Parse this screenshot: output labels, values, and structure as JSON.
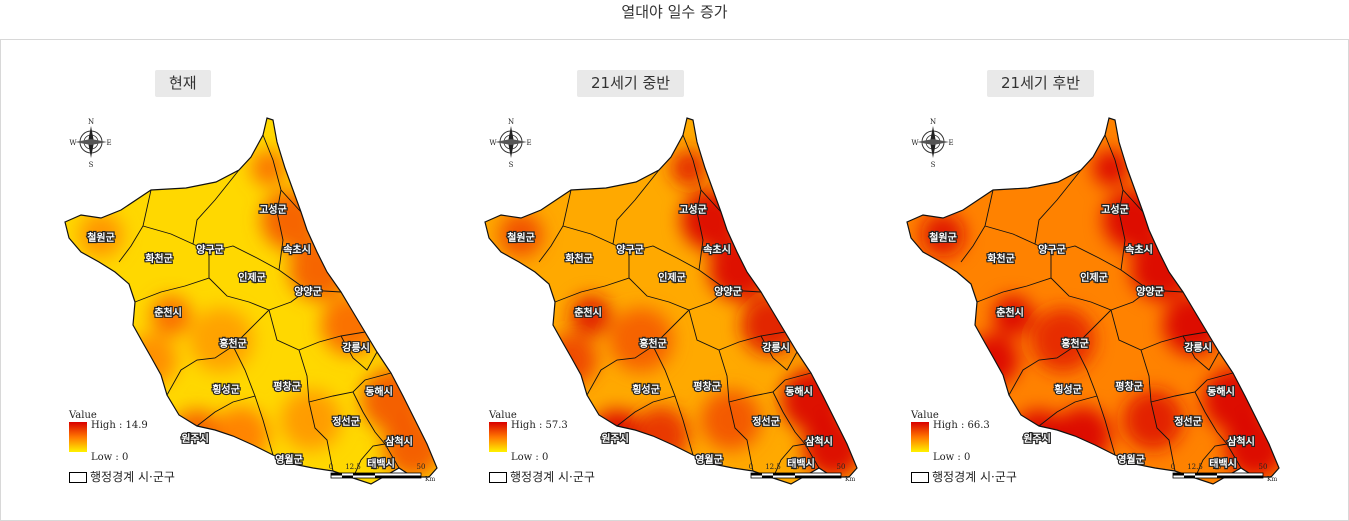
{
  "page_title": "열대야 일수 증가",
  "panels": [
    {
      "label": "현재",
      "legend_high": "High : 14.9",
      "legend_low": "Low : 0",
      "heat_level": 0.2
    },
    {
      "label": "21세기 중반",
      "legend_high": "High : 57.3",
      "legend_low": "Low : 0",
      "heat_level": 0.55
    },
    {
      "label": "21세기 후반",
      "legend_high": "High : 66.3",
      "legend_low": "Low : 0",
      "heat_level": 0.85
    }
  ],
  "legend": {
    "title": "Value",
    "boundary_label": "행정경계 시·군구"
  },
  "compass": {
    "n": "N",
    "s": "S",
    "e": "E",
    "w": "W"
  },
  "scale": {
    "ticks": [
      "0",
      "12.5",
      "25",
      "50"
    ],
    "unit": "Km"
  },
  "regions": [
    "철원군",
    "화천군",
    "양구군",
    "고성군",
    "속초시",
    "인제군",
    "양양군",
    "춘천시",
    "홍천군",
    "강릉시",
    "횡성군",
    "평창군",
    "동해시",
    "원주시",
    "정선군",
    "영월군",
    "삼척시",
    "태백시"
  ],
  "colors": {
    "low": "#fff200",
    "mid": "#ff7a00",
    "high": "#d90000"
  }
}
